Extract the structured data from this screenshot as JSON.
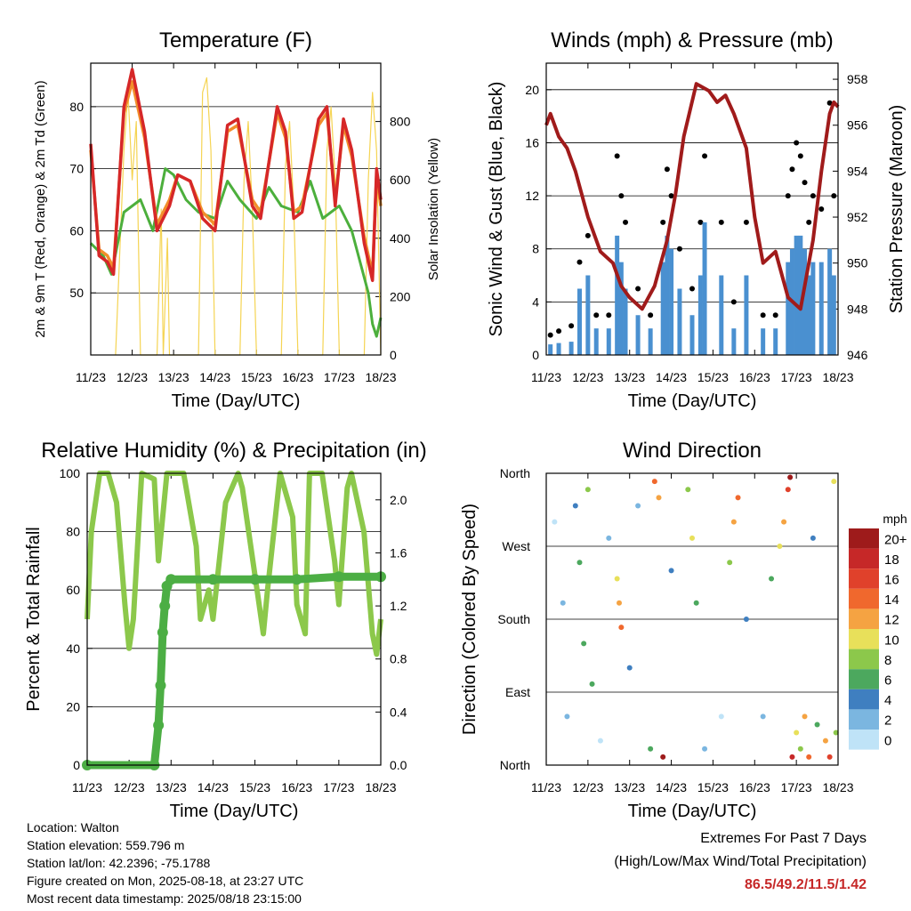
{
  "x_ticks": [
    "11/23",
    "12/23",
    "13/23",
    "14/23",
    "15/23",
    "16/23",
    "17/23",
    "18/23"
  ],
  "colors": {
    "temp_2m": "#d62728",
    "temp_9m": "#f28e2b",
    "dewpoint": "#4caf3c",
    "solar": "#f5d453",
    "wind": "#4a90d0",
    "gust": "#000000",
    "pressure": "#a01b1b",
    "rh": "#8cc84b",
    "precip": "#4cae44"
  },
  "chart_data": [
    {
      "type": "line",
      "title": "Temperature (F)",
      "xlabel": "Time (Day/UTC)",
      "ylabel": "2m & 9m T (Red, Orange) & 2m Td (Green)",
      "ylabel_right": "Solar Insolation (Yellow)",
      "xlim": [
        0,
        7
      ],
      "ylim": [
        40,
        87
      ],
      "ylim_right": [
        0,
        1000
      ],
      "yticks": [
        50,
        60,
        70,
        80
      ],
      "yticks_right": [
        0,
        200,
        400,
        600,
        800
      ],
      "series": [
        {
          "name": "2m T",
          "axis": "left",
          "color": "#d62728",
          "x": [
            0,
            0.2,
            0.4,
            0.55,
            0.8,
            1.0,
            1.3,
            1.6,
            1.9,
            2.1,
            2.4,
            2.7,
            3.0,
            3.3,
            3.55,
            3.9,
            4.1,
            4.5,
            4.7,
            4.9,
            5.1,
            5.5,
            5.7,
            5.9,
            6.1,
            6.3,
            6.6,
            6.8,
            6.9,
            7.0
          ],
          "y": [
            74,
            56,
            55,
            53,
            80,
            86,
            76,
            60,
            64,
            69,
            68,
            62,
            60,
            77,
            78,
            64,
            62,
            80,
            76,
            62,
            63,
            78,
            80,
            64,
            78,
            73,
            58,
            52,
            70,
            65
          ]
        },
        {
          "name": "9m T",
          "axis": "left",
          "color": "#f28e2b",
          "x": [
            0,
            0.2,
            0.4,
            0.55,
            0.8,
            1.0,
            1.3,
            1.6,
            1.9,
            2.1,
            2.4,
            2.7,
            3.0,
            3.3,
            3.55,
            3.9,
            4.1,
            4.5,
            4.7,
            4.9,
            5.1,
            5.5,
            5.7,
            5.9,
            6.1,
            6.3,
            6.6,
            6.8,
            6.9,
            7.0
          ],
          "y": [
            73,
            57,
            56,
            54,
            79,
            84,
            75,
            61,
            65,
            69,
            68,
            63,
            61,
            76,
            77,
            65,
            63,
            79,
            75,
            63,
            64,
            77,
            79,
            65,
            77,
            72,
            59,
            53,
            69,
            64
          ]
        },
        {
          "name": "2m Td",
          "axis": "left",
          "color": "#4caf3c",
          "x": [
            0,
            0.3,
            0.5,
            0.8,
            1.2,
            1.5,
            1.8,
            2.0,
            2.3,
            2.6,
            3.0,
            3.3,
            3.6,
            4.0,
            4.3,
            4.6,
            5.0,
            5.3,
            5.6,
            6.0,
            6.3,
            6.5,
            6.7,
            6.8,
            6.9,
            7.0
          ],
          "y": [
            58,
            56,
            53,
            63,
            65,
            60,
            70,
            69,
            65,
            63,
            62,
            68,
            65,
            62,
            67,
            64,
            63,
            68,
            62,
            64,
            60,
            55,
            50,
            45,
            43,
            46
          ]
        },
        {
          "name": "Solar",
          "axis": "right",
          "color": "#f5d453",
          "x": [
            0.6,
            0.8,
            0.9,
            1.0,
            1.1,
            1.2,
            1.6,
            1.7,
            1.75,
            1.85,
            1.9,
            2.6,
            2.7,
            2.8,
            2.9,
            3.0,
            3.6,
            3.7,
            3.8,
            3.9,
            4.0,
            4.6,
            4.7,
            4.8,
            4.9,
            5.0,
            5.6,
            5.7,
            5.8,
            5.9,
            6.0,
            6.6,
            6.7,
            6.8,
            6.9,
            7.0
          ],
          "y": [
            0,
            700,
            900,
            600,
            800,
            0,
            0,
            500,
            0,
            400,
            0,
            0,
            900,
            950,
            700,
            0,
            0,
            600,
            800,
            500,
            0,
            0,
            650,
            800,
            500,
            0,
            0,
            700,
            850,
            600,
            0,
            0,
            600,
            900,
            700,
            0
          ]
        }
      ]
    },
    {
      "type": "scatter",
      "title": "Winds (mph) & Pressure (mb)",
      "xlabel": "Time (Day/UTC)",
      "ylabel": "Sonic Wind & Gust (Blue, Black)",
      "ylabel_right": "Station Pressure (Maroon)",
      "xlim": [
        0,
        7
      ],
      "ylim": [
        0,
        22
      ],
      "ylim_right": [
        946,
        958.7
      ],
      "yticks": [
        0,
        4,
        8,
        12,
        16,
        20
      ],
      "yticks_right": [
        946,
        948,
        950,
        952,
        954,
        956,
        958
      ],
      "series": [
        {
          "name": "Gust",
          "axis": "left",
          "color": "#000000",
          "x": [
            0.1,
            0.3,
            0.6,
            0.8,
            1.0,
            1.2,
            1.5,
            1.7,
            1.8,
            1.9,
            2.2,
            2.5,
            2.8,
            2.9,
            3.0,
            3.2,
            3.5,
            3.7,
            3.8,
            4.2,
            4.5,
            4.8,
            5.2,
            5.5,
            5.8,
            5.9,
            6.0,
            6.1,
            6.2,
            6.3,
            6.4,
            6.6,
            6.8,
            6.9
          ],
          "y": [
            1.5,
            1.8,
            2.2,
            7,
            9,
            3,
            3,
            15,
            12,
            10,
            5,
            3,
            10,
            14,
            12,
            8,
            5,
            10,
            15,
            10,
            4,
            10,
            3,
            3,
            12,
            14,
            16,
            15,
            13,
            10,
            12,
            11,
            19,
            12
          ]
        },
        {
          "name": "Wind",
          "axis": "left",
          "color": "#4a90d0",
          "x": [
            0.1,
            0.3,
            0.6,
            0.8,
            1.0,
            1.2,
            1.5,
            1.7,
            1.8,
            1.9,
            2.2,
            2.5,
            2.8,
            2.9,
            3.0,
            3.2,
            3.5,
            3.7,
            3.8,
            4.2,
            4.5,
            4.8,
            5.2,
            5.5,
            5.8,
            5.9,
            6.0,
            6.1,
            6.2,
            6.3,
            6.4,
            6.6,
            6.8,
            6.9
          ],
          "y": [
            0.8,
            0.9,
            1,
            5,
            6,
            2,
            2,
            9,
            7,
            5,
            3,
            2,
            7,
            9,
            8,
            5,
            3,
            6,
            10,
            6,
            2,
            6,
            2,
            2,
            7,
            8,
            9,
            9,
            8,
            6,
            7,
            7,
            8,
            6
          ]
        },
        {
          "name": "Pressure",
          "axis": "right",
          "color": "#a01b1b",
          "x": [
            0,
            0.1,
            0.3,
            0.5,
            0.7,
            1.0,
            1.3,
            1.6,
            1.8,
            2.0,
            2.3,
            2.6,
            2.9,
            3.1,
            3.3,
            3.6,
            3.9,
            4.1,
            4.3,
            4.5,
            4.8,
            5.0,
            5.2,
            5.5,
            5.8,
            6.1,
            6.4,
            6.6,
            6.8,
            6.9,
            7.0
          ],
          "y": [
            956,
            956.5,
            955.5,
            955,
            954,
            952,
            950.5,
            950,
            949,
            948.5,
            948,
            949,
            951,
            953,
            955.5,
            957.8,
            957.5,
            957,
            957.3,
            956.5,
            955,
            952,
            950,
            950.5,
            948.5,
            948,
            951,
            954,
            956.5,
            957,
            956.8
          ]
        }
      ]
    },
    {
      "type": "line",
      "title": "Relative Humidity (%) & Precipitation (in)",
      "xlabel": "Time (Day/UTC)",
      "ylabel": "Percent & Total Rainfall",
      "xlim": [
        0,
        7
      ],
      "ylim": [
        0,
        100
      ],
      "ylim_right": [
        0,
        2.2
      ],
      "yticks": [
        0,
        20,
        40,
        60,
        80,
        100
      ],
      "yticks_right": [
        0.0,
        0.4,
        0.8,
        1.2,
        1.6,
        2.0
      ],
      "series": [
        {
          "name": "RH",
          "axis": "left",
          "color": "#8cc84b",
          "x": [
            0,
            0.1,
            0.3,
            0.5,
            0.7,
            0.9,
            1.0,
            1.1,
            1.3,
            1.6,
            1.7,
            1.9,
            2.0,
            2.3,
            2.6,
            2.7,
            2.9,
            3.0,
            3.3,
            3.6,
            3.7,
            4.0,
            4.2,
            4.3,
            4.6,
            4.9,
            5.0,
            5.2,
            5.3,
            5.6,
            5.9,
            6.0,
            6.2,
            6.3,
            6.6,
            6.8,
            6.9,
            7.0
          ],
          "y": [
            50,
            80,
            100,
            100,
            90,
            55,
            40,
            50,
            100,
            98,
            70,
            100,
            100,
            100,
            75,
            50,
            60,
            50,
            90,
            100,
            95,
            65,
            45,
            60,
            100,
            85,
            55,
            45,
            100,
            100,
            70,
            55,
            95,
            100,
            80,
            45,
            38,
            50
          ]
        },
        {
          "name": "Precip",
          "axis": "right",
          "color": "#4cae44",
          "x": [
            0,
            1.6,
            1.7,
            1.75,
            1.8,
            1.85,
            1.9,
            2.0,
            3,
            4,
            5,
            6,
            7
          ],
          "y": [
            0,
            0,
            0.3,
            0.6,
            1.0,
            1.2,
            1.35,
            1.4,
            1.4,
            1.4,
            1.4,
            1.42,
            1.42
          ]
        }
      ]
    },
    {
      "type": "scatter",
      "title": "Wind Direction",
      "xlabel": "Time (Day/UTC)",
      "ylabel": "Direction (Colored By Speed)",
      "xlim": [
        0,
        7
      ],
      "ylim": [
        0,
        360
      ],
      "ytick_labels": [
        "North",
        "East",
        "South",
        "West",
        "North"
      ],
      "colorbar": {
        "title": "mph",
        "labels": [
          "20+",
          "18",
          "16",
          "14",
          "12",
          "10",
          "8",
          "6",
          "4",
          "2",
          "0"
        ],
        "colors": [
          "#9e1b1b",
          "#c62828",
          "#e0412b",
          "#f0682d",
          "#f5a342",
          "#e8e05a",
          "#8cc84b",
          "#4ca85e",
          "#3f7fc0",
          "#7bb6e0",
          "#bfe3f7"
        ]
      },
      "points": [
        {
          "x": 0.2,
          "y": 300,
          "s": 0
        },
        {
          "x": 0.4,
          "y": 200,
          "s": 1
        },
        {
          "x": 0.5,
          "y": 60,
          "s": 1
        },
        {
          "x": 0.7,
          "y": 320,
          "s": 2
        },
        {
          "x": 0.8,
          "y": 250,
          "s": 3
        },
        {
          "x": 0.9,
          "y": 150,
          "s": 3
        },
        {
          "x": 1.0,
          "y": 340,
          "s": 4
        },
        {
          "x": 1.1,
          "y": 100,
          "s": 3
        },
        {
          "x": 1.3,
          "y": 30,
          "s": 0
        },
        {
          "x": 1.5,
          "y": 280,
          "s": 1
        },
        {
          "x": 1.7,
          "y": 230,
          "s": 5
        },
        {
          "x": 1.75,
          "y": 200,
          "s": 6
        },
        {
          "x": 1.8,
          "y": 170,
          "s": 7
        },
        {
          "x": 2.0,
          "y": 120,
          "s": 2
        },
        {
          "x": 2.2,
          "y": 320,
          "s": 1
        },
        {
          "x": 2.5,
          "y": 20,
          "s": 3
        },
        {
          "x": 2.6,
          "y": 350,
          "s": 7
        },
        {
          "x": 2.7,
          "y": 330,
          "s": 6
        },
        {
          "x": 2.8,
          "y": 10,
          "s": 10
        },
        {
          "x": 3.0,
          "y": 240,
          "s": 2
        },
        {
          "x": 3.4,
          "y": 340,
          "s": 4
        },
        {
          "x": 3.5,
          "y": 280,
          "s": 5
        },
        {
          "x": 3.6,
          "y": 200,
          "s": 3
        },
        {
          "x": 3.8,
          "y": 20,
          "s": 1
        },
        {
          "x": 4.2,
          "y": 60,
          "s": 0
        },
        {
          "x": 4.4,
          "y": 250,
          "s": 4
        },
        {
          "x": 4.5,
          "y": 300,
          "s": 6
        },
        {
          "x": 4.6,
          "y": 330,
          "s": 7
        },
        {
          "x": 4.8,
          "y": 180,
          "s": 2
        },
        {
          "x": 5.2,
          "y": 60,
          "s": 1
        },
        {
          "x": 5.4,
          "y": 230,
          "s": 3
        },
        {
          "x": 5.6,
          "y": 270,
          "s": 5
        },
        {
          "x": 5.7,
          "y": 300,
          "s": 6
        },
        {
          "x": 5.8,
          "y": 340,
          "s": 8
        },
        {
          "x": 5.85,
          "y": 355,
          "s": 10
        },
        {
          "x": 5.9,
          "y": 10,
          "s": 9
        },
        {
          "x": 6.0,
          "y": 40,
          "s": 5
        },
        {
          "x": 6.1,
          "y": 20,
          "s": 4
        },
        {
          "x": 6.2,
          "y": 60,
          "s": 6
        },
        {
          "x": 6.3,
          "y": 10,
          "s": 7
        },
        {
          "x": 6.4,
          "y": 280,
          "s": 2
        },
        {
          "x": 6.5,
          "y": 50,
          "s": 3
        },
        {
          "x": 6.7,
          "y": 30,
          "s": 6
        },
        {
          "x": 6.8,
          "y": 10,
          "s": 8
        },
        {
          "x": 6.9,
          "y": 350,
          "s": 5
        },
        {
          "x": 6.95,
          "y": 40,
          "s": 4
        }
      ]
    }
  ],
  "info": {
    "location": "Location: Walton",
    "elevation": "Station elevation: 559.796 m",
    "latlon": "Station lat/lon: 42.2396; -75.1788",
    "created": "Figure created on Mon, 2025-08-18, at 23:27 UTC",
    "recent": "Most recent data timestamp: 2025/08/18 23:15:00"
  },
  "extremes": {
    "title": "Extremes For Past 7 Days",
    "subtitle": "(High/Low/Max Wind/Total Precipitation)",
    "values": "86.5/49.2/11.5/1.42"
  }
}
